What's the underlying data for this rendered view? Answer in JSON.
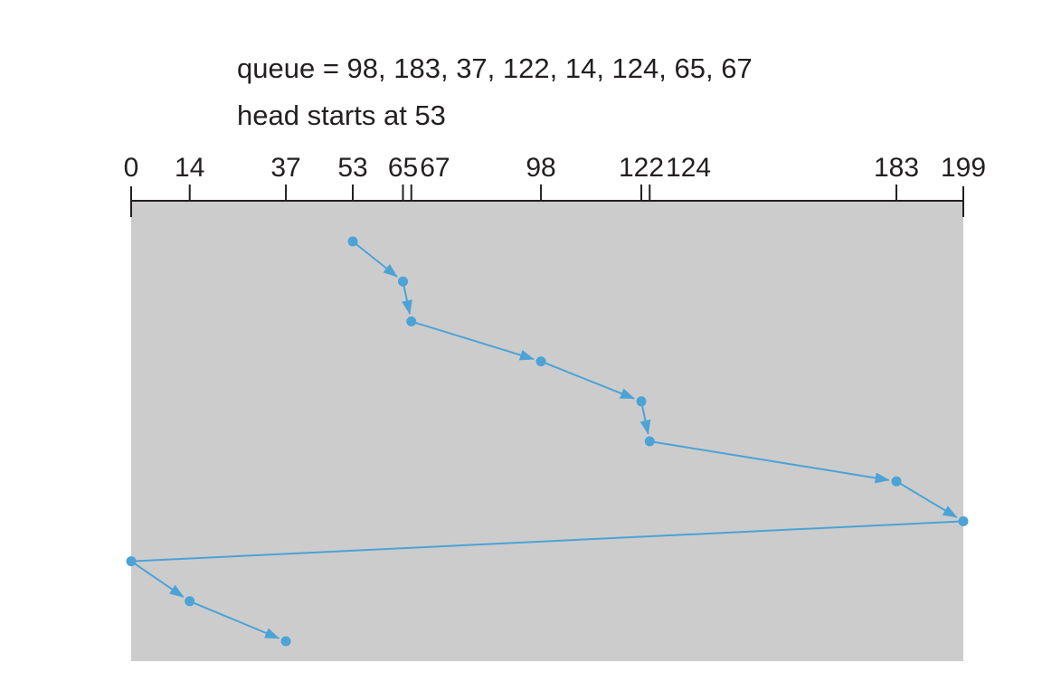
{
  "caption": {
    "queue_line": "queue = 98, 183, 37, 122, 14, 124, 65, 67",
    "head_line": "head starts at 53"
  },
  "chart_data": {
    "type": "line",
    "axis": {
      "min": 0,
      "max": 199,
      "ticks": [
        0,
        14,
        37,
        53,
        65,
        67,
        98,
        122,
        124,
        183,
        199
      ],
      "tick_labels": [
        "0",
        "14",
        "37",
        "53",
        "65",
        "67",
        "98",
        "122",
        "124",
        "183",
        "199"
      ]
    },
    "path": [
      53,
      65,
      67,
      98,
      122,
      124,
      183,
      199,
      0,
      14,
      37
    ],
    "arrowheads": [
      true,
      true,
      true,
      true,
      true,
      true,
      true,
      false,
      true,
      true
    ]
  },
  "colors": {
    "background": "#cccccc",
    "path": "#4ba3d6",
    "axis": "#231f20"
  }
}
